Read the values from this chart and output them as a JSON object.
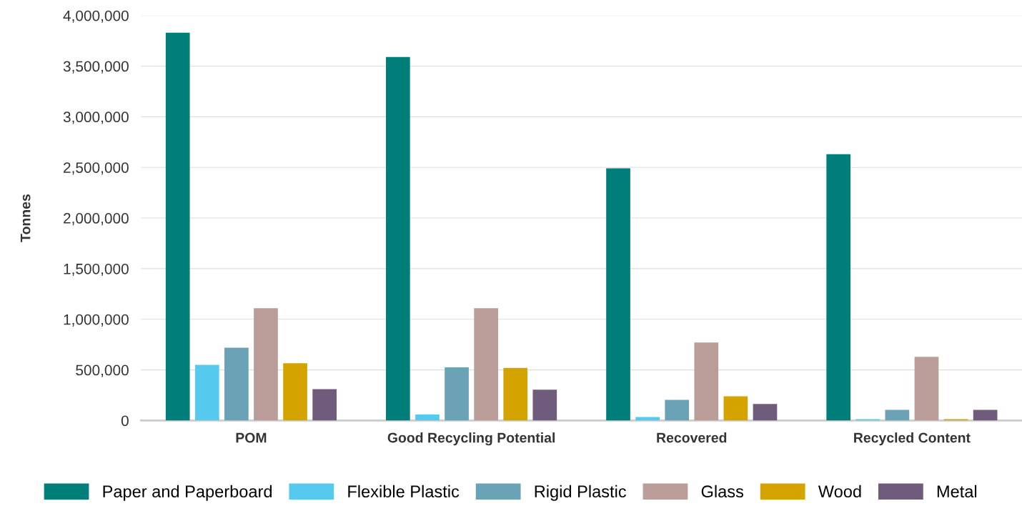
{
  "chart_data": {
    "type": "bar",
    "ylabel": "Tonnes",
    "categories": [
      "POM",
      "Good Recycling Potential",
      "Recovered",
      "Recycled Content"
    ],
    "series": [
      {
        "name": "Paper and Paperboard",
        "color": "#007f7a",
        "values": [
          3830000,
          3590000,
          2490000,
          2630000
        ]
      },
      {
        "name": "Flexible Plastic",
        "color": "#56c9ef",
        "values": [
          550000,
          60000,
          35000,
          14000
        ]
      },
      {
        "name": "Rigid Plastic",
        "color": "#6ba2b5",
        "values": [
          720000,
          525000,
          205000,
          105000
        ]
      },
      {
        "name": "Glass",
        "color": "#ba9d98",
        "values": [
          1110000,
          1110000,
          770000,
          630000
        ]
      },
      {
        "name": "Wood",
        "color": "#d4a300",
        "values": [
          565000,
          520000,
          240000,
          14000
        ]
      },
      {
        "name": "Metal",
        "color": "#6f5b7b",
        "values": [
          310000,
          305000,
          163000,
          105000
        ]
      }
    ],
    "ylim": [
      0,
      4000000
    ],
    "yticks": [
      {
        "value": 0,
        "label": "0"
      },
      {
        "value": 500000,
        "label": "500,000"
      },
      {
        "value": 1000000,
        "label": "1,000,000"
      },
      {
        "value": 1500000,
        "label": "1,500,000"
      },
      {
        "value": 2000000,
        "label": "2,000,000"
      },
      {
        "value": 2500000,
        "label": "2,500,000"
      },
      {
        "value": 3000000,
        "label": "3,000,000"
      },
      {
        "value": 3500000,
        "label": "3,500,000"
      },
      {
        "value": 4000000,
        "label": "4,000,000"
      }
    ],
    "grid": "y",
    "legend": "bottom"
  }
}
